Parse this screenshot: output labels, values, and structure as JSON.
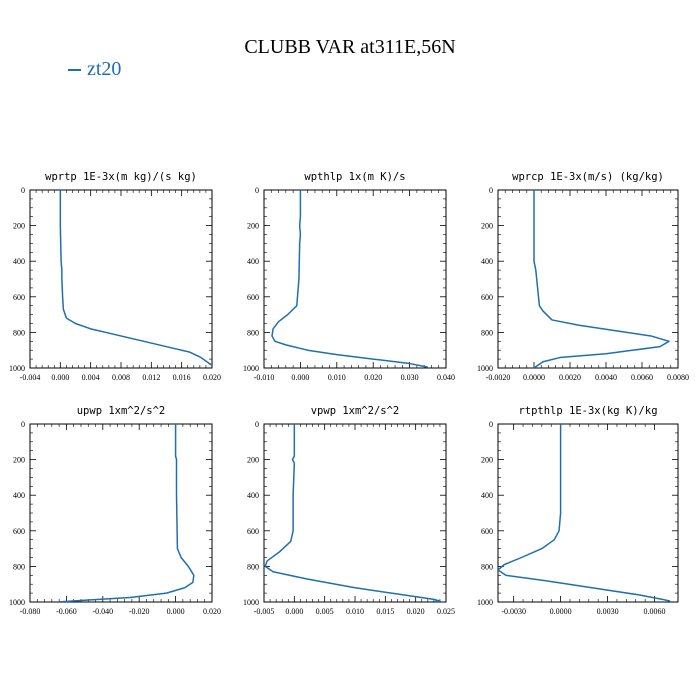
{
  "figure": {
    "title": "CLUBB VAR at311E,56N",
    "legend_label": "zt20",
    "series_color": "#1f6fb0"
  },
  "chart_data": [
    {
      "type": "line",
      "title": "wprtp  1E-3x(m kg)/(s kg)",
      "xlim": [
        -0.004,
        0.02
      ],
      "ylim": [
        1000,
        0
      ],
      "xticks": [
        -0.004,
        0.0,
        0.004,
        0.008,
        0.012,
        0.016,
        0.02
      ],
      "xticklabels": [
        "-0.004",
        "0.000",
        "0.004",
        "0.008",
        "0.012",
        "0.016",
        "0.020"
      ],
      "yticks": [
        0,
        200,
        400,
        600,
        800,
        1000
      ],
      "series": [
        {
          "name": "zt20",
          "x": [
            0.0,
            0.0,
            0.0001,
            0.0002,
            0.0002,
            0.0003,
            0.0004,
            0.0008,
            0.002,
            0.004,
            0.007,
            0.011,
            0.015,
            0.017,
            0.0185,
            0.02
          ],
          "y": [
            0,
            200,
            400,
            450,
            500,
            600,
            670,
            720,
            750,
            780,
            810,
            850,
            890,
            910,
            940,
            985
          ]
        }
      ]
    },
    {
      "type": "line",
      "title": "wpthlp  1x(m K)/s",
      "xlim": [
        -0.01,
        0.04
      ],
      "ylim": [
        1000,
        0
      ],
      "xticks": [
        -0.01,
        0.0,
        0.01,
        0.02,
        0.03,
        0.04
      ],
      "xticklabels": [
        "-0.010",
        "0.000",
        "0.010",
        "0.020",
        "0.030",
        "0.040"
      ],
      "yticks": [
        0,
        200,
        400,
        600,
        800,
        1000
      ],
      "series": [
        {
          "name": "zt20",
          "x": [
            0.0,
            0.0,
            -0.0002,
            0.0,
            -0.0002,
            -0.0004,
            -0.001,
            -0.0035,
            -0.006,
            -0.0075,
            -0.0078,
            -0.007,
            -0.004,
            0.002,
            0.01,
            0.02,
            0.03,
            0.035
          ],
          "y": [
            0,
            150,
            200,
            250,
            300,
            500,
            650,
            700,
            740,
            780,
            820,
            850,
            870,
            900,
            925,
            950,
            975,
            995
          ]
        }
      ]
    },
    {
      "type": "line",
      "title": "wprcp  1E-3x(m/s) (kg/kg)",
      "xlim": [
        -0.002,
        0.008
      ],
      "ylim": [
        1000,
        0
      ],
      "xticks": [
        -0.002,
        0.0,
        0.002,
        0.004,
        0.006,
        0.008
      ],
      "xticklabels": [
        "-0.0020",
        "0.0000",
        "0.0020",
        "0.0040",
        "0.0060",
        "0.0080"
      ],
      "yticks": [
        0,
        200,
        400,
        600,
        800,
        1000
      ],
      "series": [
        {
          "name": "zt20",
          "x": [
            0.0,
            0.0,
            0.0001,
            0.0002,
            0.0003,
            0.0005,
            0.001,
            0.0025,
            0.0045,
            0.0065,
            0.0075,
            0.007,
            0.004,
            0.0015,
            0.0005,
            0.0
          ],
          "y": [
            0,
            400,
            450,
            550,
            650,
            680,
            730,
            760,
            790,
            820,
            850,
            880,
            920,
            940,
            965,
            1000
          ]
        }
      ]
    },
    {
      "type": "line",
      "title": "upwp  1xm^2/s^2",
      "xlim": [
        -0.08,
        0.02
      ],
      "ylim": [
        1000,
        0
      ],
      "xticks": [
        -0.08,
        -0.06,
        -0.04,
        -0.02,
        0.0,
        0.02
      ],
      "xticklabels": [
        "-0.080",
        "-0.060",
        "-0.040",
        "-0.020",
        "0.000",
        "0.020"
      ],
      "yticks": [
        0,
        200,
        400,
        600,
        800,
        1000
      ],
      "series": [
        {
          "name": "zt20",
          "x": [
            0.0,
            0.0,
            0.0005,
            0.0005,
            0.001,
            0.003,
            0.007,
            0.01,
            0.0095,
            0.005,
            -0.005,
            -0.025,
            -0.05,
            -0.065
          ],
          "y": [
            0,
            180,
            200,
            400,
            700,
            750,
            800,
            850,
            890,
            920,
            950,
            975,
            990,
            1000
          ]
        }
      ]
    },
    {
      "type": "line",
      "title": "vpwp  1xm^2/s^2",
      "xlim": [
        -0.005,
        0.025
      ],
      "ylim": [
        1000,
        0
      ],
      "xticks": [
        -0.005,
        0.0,
        0.005,
        0.01,
        0.015,
        0.02,
        0.025
      ],
      "xticklabels": [
        "-0.005",
        "0.000",
        "0.005",
        "0.010",
        "0.015",
        "0.020",
        "0.025"
      ],
      "yticks": [
        0,
        200,
        400,
        600,
        800,
        1000
      ],
      "series": [
        {
          "name": "zt20",
          "x": [
            0.0,
            0.0,
            -0.0003,
            0.0,
            -0.0002,
            -0.0002,
            -0.0006,
            -0.0025,
            -0.0045,
            -0.0048,
            -0.0035,
            0.002,
            0.01,
            0.018,
            0.023,
            0.024,
            0.0225
          ],
          "y": [
            0,
            180,
            200,
            220,
            400,
            600,
            660,
            720,
            770,
            800,
            830,
            870,
            920,
            960,
            985,
            995,
            1000
          ]
        }
      ]
    },
    {
      "type": "line",
      "title": "rtpthlp  1E-3x(kg K)/kg",
      "xlim": [
        -0.004,
        0.0075
      ],
      "ylim": [
        1000,
        0
      ],
      "xticks": [
        -0.003,
        0.0,
        0.003,
        0.006
      ],
      "xticklabels": [
        "-0.0030",
        "0.0000",
        "0.0030",
        "0.0060"
      ],
      "yticks": [
        0,
        200,
        400,
        600,
        800,
        1000
      ],
      "series": [
        {
          "name": "zt20",
          "x": [
            0.0,
            0.0,
            -0.0001,
            -0.0004,
            -0.0012,
            -0.0025,
            -0.0036,
            -0.004,
            -0.0035,
            -0.001,
            0.002,
            0.005,
            0.0065,
            0.007
          ],
          "y": [
            0,
            500,
            600,
            650,
            700,
            750,
            790,
            820,
            850,
            880,
            920,
            960,
            985,
            995
          ]
        }
      ]
    }
  ]
}
